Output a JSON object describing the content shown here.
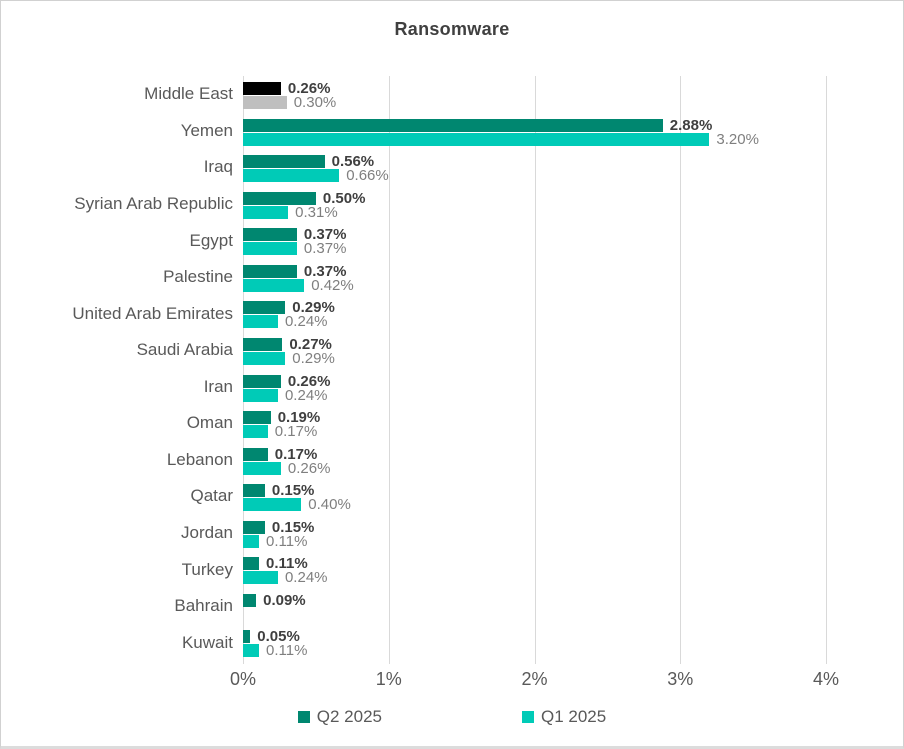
{
  "title": "Ransomware",
  "colors": {
    "q2_series": "#008770",
    "q1_series": "#00CBB7",
    "middle_east_q2": "#000000",
    "middle_east_q1": "#BFBFBF",
    "gridline": "#D9D9D9",
    "title_text": "#404040",
    "axis_text": "#595959",
    "value_label_bold": "#3F3F3F",
    "value_label_gray": "#7F7F7F"
  },
  "legend": {
    "items": [
      {
        "label": "Q2 2025",
        "color": "#008770"
      },
      {
        "label": "Q1 2025",
        "color": "#00CBB7"
      }
    ],
    "position": "bottom"
  },
  "chart_data": {
    "type": "bar",
    "orientation": "horizontal",
    "title": "Ransomware",
    "categories": [
      "Middle East",
      "Yemen",
      "Iraq",
      "Syrian Arab Republic",
      "Egypt",
      "Palestine",
      "United Arab Emirates",
      "Saudi Arabia",
      "Iran",
      "Oman",
      "Lebanon",
      "Qatar",
      "Jordan",
      "Turkey",
      "Bahrain",
      "Kuwait"
    ],
    "series": [
      {
        "name": "Q2 2025",
        "color": "#008770",
        "values": [
          0.26,
          2.88,
          0.56,
          0.5,
          0.37,
          0.37,
          0.29,
          0.27,
          0.26,
          0.19,
          0.17,
          0.15,
          0.15,
          0.11,
          0.09,
          0.05
        ],
        "labels": [
          "0.26%",
          "2.88%",
          "0.56%",
          "0.50%",
          "0.37%",
          "0.37%",
          "0.29%",
          "0.27%",
          "0.26%",
          "0.19%",
          "0.17%",
          "0.15%",
          "0.15%",
          "0.11%",
          "0.09%",
          "0.05%"
        ]
      },
      {
        "name": "Q1 2025",
        "color": "#00CBB7",
        "values": [
          0.3,
          3.2,
          0.66,
          0.31,
          0.37,
          0.42,
          0.24,
          0.29,
          0.24,
          0.17,
          0.26,
          0.4,
          0.11,
          0.24,
          null,
          0.11
        ],
        "labels": [
          "0.30%",
          "3.20%",
          "0.66%",
          "0.31%",
          "0.37%",
          "0.42%",
          "0.24%",
          "0.29%",
          "0.24%",
          "0.17%",
          "0.26%",
          "0.40%",
          "0.11%",
          "0.24%",
          null,
          "0.11%"
        ]
      }
    ],
    "category_color_overrides": {
      "Middle East": {
        "q2_color": "#000000",
        "q1_color": "#BFBFBF"
      }
    },
    "xlim": [
      0,
      4
    ],
    "x_ticks": [
      "0%",
      "1%",
      "2%",
      "3%",
      "4%"
    ],
    "grid": true,
    "legend_position": "bottom"
  }
}
